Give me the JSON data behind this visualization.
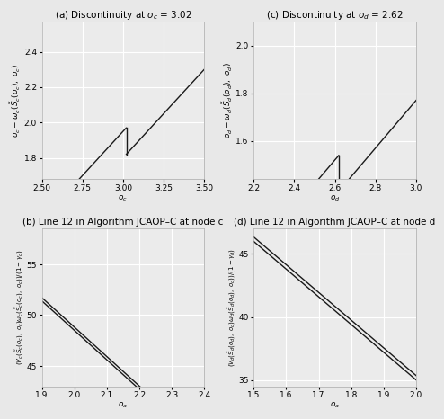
{
  "panel_a": {
    "title": "(a) Discontinuity at $o_c$ = 3.02",
    "xlabel": "$o_c$",
    "ylabel": "$o_c - \\omega_c(\\tilde{S}_c(o_c),\\ o_c)$",
    "xlim": [
      2.5,
      3.5
    ],
    "ylim": [
      1.68,
      2.57
    ],
    "disc": 3.02,
    "slope": 1.0,
    "intercept_before": -1.05,
    "jump_up": 0.15,
    "xticks": [
      2.5,
      2.75,
      3.0,
      3.25,
      3.5
    ],
    "yticks": [
      1.8,
      2.0,
      2.2,
      2.4
    ]
  },
  "panel_c": {
    "title": "(c) Discontinuity at $o_d$ = 2.62",
    "xlabel": "$o_d$",
    "ylabel": "$o_d - \\omega_d(\\tilde{S}_d(o_d),\\ o_d)$",
    "xlim": [
      2.2,
      3.0
    ],
    "ylim": [
      1.44,
      2.1
    ],
    "disc": 2.62,
    "slope": 1.0,
    "intercept_before": -1.08,
    "jump_up": 0.15,
    "xticks": [
      2.2,
      2.4,
      2.6,
      2.8,
      3.0
    ],
    "yticks": [
      1.6,
      1.8,
      2.0
    ]
  },
  "panel_b": {
    "title": "(b) Line 12 in Algorithm JCAOP–C at node c",
    "xlabel": "$o_a$",
    "ylabel": "$(V_c(\\tilde{S}_c(o_c),\\ o_c)\\omega_c(\\tilde{S}_c(o_c),\\ o_c))/(1 - \\gamma_c)$",
    "xlim": [
      1.9,
      2.4
    ],
    "ylim": [
      43.0,
      58.5
    ],
    "slope": -29.0,
    "intercept1": 106.5,
    "intercept2": 106.82,
    "xticks": [
      1.9,
      2.0,
      2.1,
      2.2,
      2.3,
      2.4
    ],
    "yticks": [
      45,
      50,
      55
    ]
  },
  "panel_d": {
    "title": "(d) Line 12 in Algorithm JCAOP–C at node d",
    "xlabel": "$o_a$",
    "ylabel": "$(V_d(\\tilde{S}_d(o_d),\\ o_d)\\omega_d(\\tilde{S}_d(o_d),\\ o_d))/(1 - \\gamma_d)$",
    "xlim": [
      1.5,
      2.0
    ],
    "ylim": [
      34.5,
      47.0
    ],
    "slope": -22.0,
    "intercept1": 79.0,
    "intercept2": 79.35,
    "xticks": [
      1.5,
      1.6,
      1.7,
      1.8,
      1.9,
      2.0
    ],
    "yticks": [
      35,
      40,
      45
    ]
  },
  "bg_color": "#ebebeb",
  "line_color": "#1a1a1a",
  "grid_color": "#ffffff",
  "title_fontsize": 7.5,
  "label_fontsize": 6.5,
  "tick_fontsize": 6.5
}
